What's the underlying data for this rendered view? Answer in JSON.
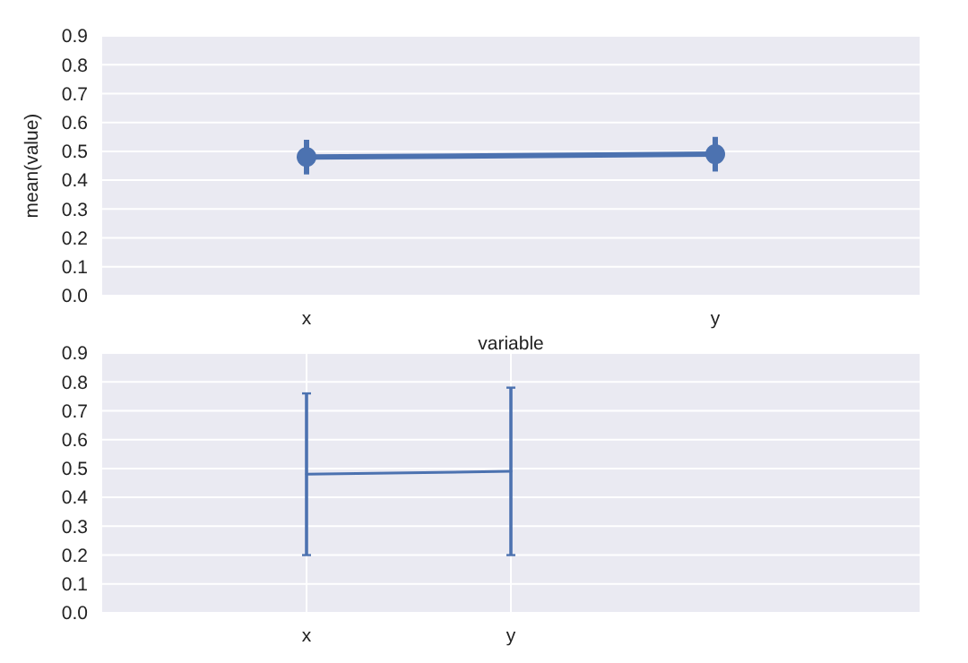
{
  "chart_data": [
    {
      "type": "line",
      "xlabel": "variable",
      "ylabel": "mean(value)",
      "categories": [
        "x",
        "y"
      ],
      "series": [
        {
          "color": "#4c72b0",
          "values": [
            0.48,
            0.49
          ],
          "errors": [
            [
              0.42,
              0.54
            ],
            [
              0.43,
              0.55
            ]
          ]
        }
      ],
      "ylim": [
        0,
        0.9
      ],
      "yticks": [
        {
          "value": 0,
          "label": "0.0"
        },
        0.1,
        0.2,
        0.3,
        0.4,
        0.5,
        0.6,
        0.7,
        0.8,
        0.9
      ],
      "grid": "y",
      "marker": "circle"
    },
    {
      "type": "line",
      "categories": [
        null,
        "x",
        "y",
        null,
        null
      ],
      "series": [
        {
          "color": "#4c72b0",
          "values": [
            null,
            0.48,
            0.49,
            null,
            null
          ],
          "errors": [
            null,
            [
              0.2,
              0.76
            ],
            [
              0.2,
              0.78
            ],
            null,
            null
          ]
        }
      ],
      "ylim": [
        0,
        0.9
      ],
      "yticks": [
        {
          "value": 0,
          "label": "0.0"
        },
        0.1,
        0.2,
        0.3,
        0.4,
        0.5,
        0.6,
        0.7,
        0.8,
        0.9
      ],
      "grid": true,
      "marker": "none"
    }
  ]
}
